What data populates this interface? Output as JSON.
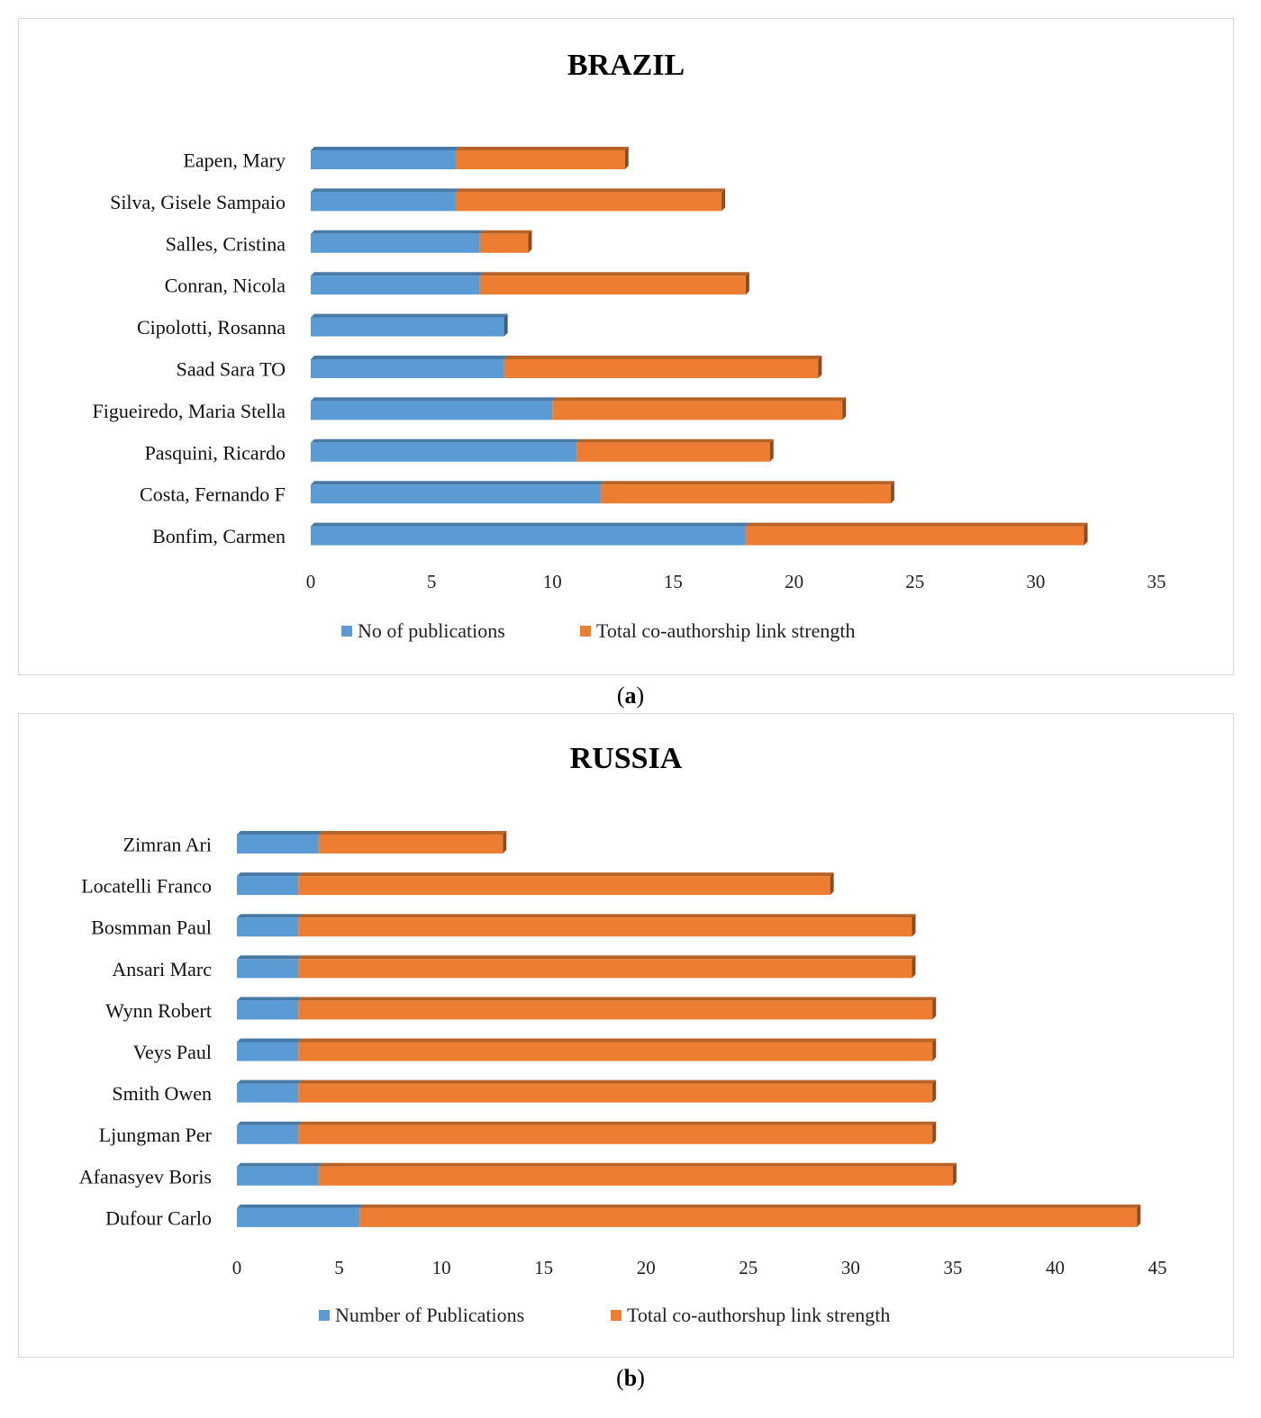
{
  "chart_data": [
    {
      "type": "bar",
      "orientation": "horizontal",
      "stacked": true,
      "title": "BRAZIL",
      "caption": {
        "open": "(",
        "letter": "a",
        "close": ")"
      },
      "categories": [
        "Eapen, Mary",
        "Silva, Gisele Sampaio",
        "Salles, Cristina",
        "Conran, Nicola",
        "Cipolotti, Rosanna",
        "Saad Sara TO",
        "Figueiredo, Maria Stella",
        "Pasquini, Ricardo",
        "Costa, Fernando F",
        "Bonfim, Carmen"
      ],
      "series": [
        {
          "name": "No of publications",
          "color": "#5b9bd5",
          "values": [
            6,
            6,
            7,
            7,
            8,
            8,
            10,
            11,
            12,
            18
          ]
        },
        {
          "name": "Total co-authorship link strength",
          "color": "#ed7d31",
          "values": [
            7,
            11,
            2,
            11,
            0,
            13,
            12,
            8,
            12,
            14
          ]
        }
      ],
      "xlim": [
        0,
        35
      ],
      "xticks": [
        0,
        5,
        10,
        15,
        20,
        25,
        30,
        35
      ],
      "legend_position": "bottom"
    },
    {
      "type": "bar",
      "orientation": "horizontal",
      "stacked": true,
      "title": "RUSSIA",
      "caption": {
        "open": "(",
        "letter": "b",
        "close": ")"
      },
      "categories": [
        "Zimran Ari",
        "Locatelli Franco",
        "Bosmman Paul",
        "Ansari Marc",
        "Wynn Robert",
        "Veys Paul",
        "Smith Owen",
        "Ljungman Per",
        "Afanasyev Boris",
        "Dufour Carlo"
      ],
      "series": [
        {
          "name": "Number of Publications",
          "color": "#5b9bd5",
          "values": [
            4,
            3,
            3,
            3,
            3,
            3,
            3,
            3,
            4,
            6
          ]
        },
        {
          "name": "Total co-authorshup link strength",
          "color": "#ed7d31",
          "values": [
            9,
            26,
            30,
            30,
            31,
            31,
            31,
            31,
            31,
            38
          ]
        }
      ],
      "xlim": [
        0,
        45
      ],
      "xticks": [
        0,
        5,
        10,
        15,
        20,
        25,
        30,
        35,
        40,
        45
      ],
      "legend_position": "bottom"
    }
  ]
}
